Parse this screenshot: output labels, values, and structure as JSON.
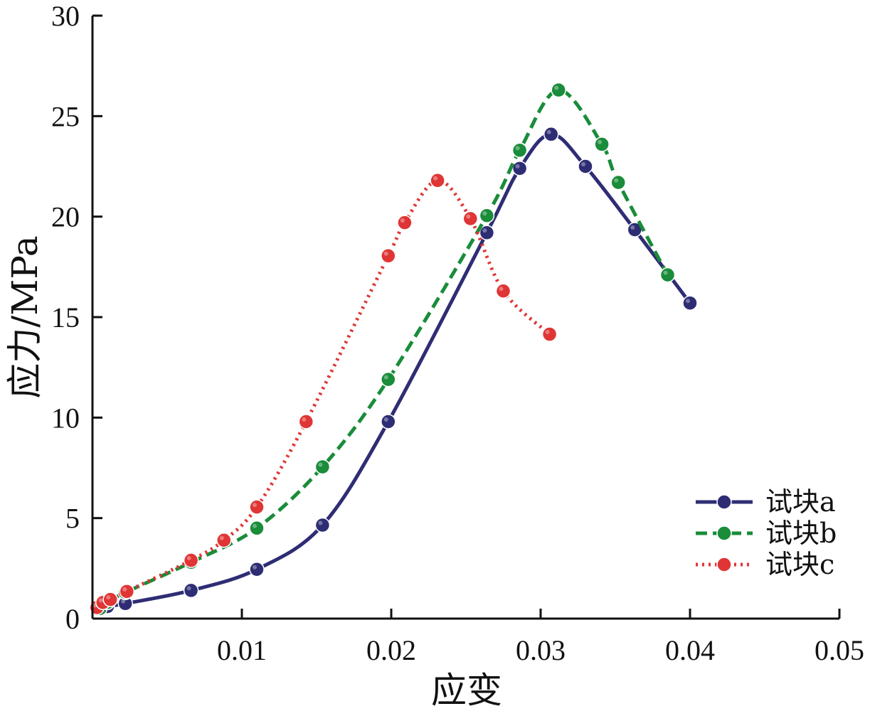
{
  "chart_data": {
    "type": "line",
    "xlabel": "应变",
    "ylabel": "应力/MPa",
    "xlim": [
      0,
      0.05
    ],
    "ylim": [
      0,
      30
    ],
    "x_ticks": [
      0.01,
      0.02,
      0.03,
      0.04,
      0.05
    ],
    "x_tick_labels": [
      "0.01",
      "0.02",
      "0.03",
      "0.04",
      "0.05"
    ],
    "y_ticks": [
      0,
      5,
      10,
      15,
      20,
      25,
      30
    ],
    "y_tick_labels": [
      "0",
      "5",
      "10",
      "15",
      "20",
      "25",
      "30"
    ],
    "legend_position": "bottom-right",
    "grid": false,
    "series": [
      {
        "name": "试块a",
        "color": "#2e2d74",
        "line_style": "solid",
        "points": [
          [
            0.0005,
            0.5
          ],
          [
            0.001,
            0.6
          ],
          [
            0.0022,
            0.75
          ],
          [
            0.0066,
            1.4
          ],
          [
            0.011,
            2.45
          ],
          [
            0.0154,
            4.65
          ],
          [
            0.0198,
            9.8
          ],
          [
            0.0264,
            19.2
          ],
          [
            0.0286,
            22.4
          ],
          [
            0.0307,
            24.1
          ],
          [
            0.033,
            22.5
          ],
          [
            0.0363,
            19.35
          ],
          [
            0.04,
            15.7
          ]
        ]
      },
      {
        "name": "试块b",
        "color": "#1a8c3a",
        "line_style": "dashed",
        "points": [
          [
            0.0005,
            0.5
          ],
          [
            0.001,
            0.8
          ],
          [
            0.0022,
            1.3
          ],
          [
            0.0066,
            2.8
          ],
          [
            0.011,
            4.5
          ],
          [
            0.0154,
            7.55
          ],
          [
            0.0198,
            11.9
          ],
          [
            0.0264,
            20.05
          ],
          [
            0.0286,
            23.3
          ],
          [
            0.0312,
            26.3
          ],
          [
            0.0341,
            23.6
          ],
          [
            0.0352,
            21.7
          ],
          [
            0.0385,
            17.1
          ]
        ]
      },
      {
        "name": "试块c",
        "color": "#e03535",
        "line_style": "dotted",
        "points": [
          [
            0.0003,
            0.55
          ],
          [
            0.0007,
            0.8
          ],
          [
            0.0012,
            0.95
          ],
          [
            0.0023,
            1.35
          ],
          [
            0.0066,
            2.9
          ],
          [
            0.0088,
            3.9
          ],
          [
            0.011,
            5.55
          ],
          [
            0.0143,
            9.8
          ],
          [
            0.0198,
            18.05
          ],
          [
            0.0209,
            19.7
          ],
          [
            0.0231,
            21.8
          ],
          [
            0.0253,
            19.9
          ],
          [
            0.0275,
            16.3
          ],
          [
            0.0306,
            14.15
          ]
        ]
      }
    ]
  }
}
